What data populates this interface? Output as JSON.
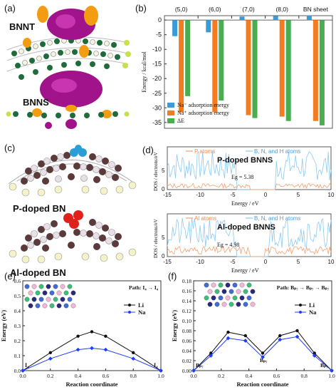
{
  "panels": {
    "a": {
      "label": "(a)",
      "top_label": "BNNT",
      "bottom_label": "BNNS"
    },
    "b": {
      "label": "(b)",
      "chart_data": {
        "type": "bar",
        "categories": [
          "(5,0)",
          "(6,0)",
          "(7,0)",
          "(8,0)",
          "BN sheet"
        ],
        "ylabel": "Energy / kcal/mol",
        "ylim": [
          -37,
          1.5
        ],
        "yticks": [
          0,
          -5,
          -10,
          -15,
          -20,
          -25,
          -30,
          -35
        ],
        "series": [
          {
            "name": "Na⁻ adsorption energy",
            "color": "#3a9bd9",
            "values": [
              -5.5,
              -4.2,
              1.2,
              1.4,
              1.6
            ]
          },
          {
            "name": "Na⁺ adsorption energy",
            "color": "#f47c20",
            "values": [
              -31.5,
              -31.5,
              -32.5,
              -33.0,
              -34.5
            ]
          },
          {
            "name": "ΔE",
            "color": "#4aad52",
            "values": [
              -26.0,
              -27.5,
              -33.5,
              -34.5,
              -36.0
            ]
          }
        ]
      }
    },
    "c": {
      "label": "(c)",
      "top_label": "P-doped BN",
      "bottom_label": "Al-doped BN"
    },
    "d": {
      "label": "(d)",
      "top": {
        "legend_a": "P atoms",
        "legend_b": "B, N, and H atoms",
        "title": "P-doped BNNS",
        "eg": "Eg = 5.38",
        "ylabel": "DOS / electrons/eV",
        "xlabel": "Energy / eV",
        "xticks": [
          "-15",
          "-10",
          "-5",
          "0",
          "5",
          "10"
        ],
        "yticks": [
          "0",
          "5"
        ]
      },
      "bottom": {
        "legend_a": "Al atoms",
        "legend_b": "B, N, and H atoms",
        "title": "Al-doped BNNS",
        "eg": "Eg = 4.98",
        "ylabel": "DOS / electrons/eV",
        "xlabel": "Energy / eV",
        "xticks": [
          "-15",
          "-10",
          "-5",
          "0",
          "5",
          "10"
        ],
        "yticks": [
          "0",
          "5"
        ]
      },
      "colors": {
        "dopant": "#f4a070",
        "host": "#8ccaf0"
      }
    },
    "e": {
      "label": "(e)",
      "path_label": "Path: I₄ → I₄",
      "start_label": "I₄",
      "end_label": "I₄",
      "chart_data": {
        "type": "line",
        "xlabel": "Reaction coordinate",
        "ylabel": "Energy (eV)",
        "xlim": [
          0,
          1
        ],
        "ylim": [
          0,
          0.6
        ],
        "xticks": [
          "0.0",
          "0.2",
          "0.4",
          "0.6",
          "0.8",
          "1.0"
        ],
        "yticks": [
          "0.0",
          "0.1",
          "0.2",
          "0.3",
          "0.4",
          "0.5",
          "0.6"
        ],
        "x": [
          0,
          0.2,
          0.4,
          0.5,
          0.6,
          0.8,
          1.0
        ],
        "series": [
          {
            "name": "Li",
            "color": "#111111",
            "values": [
              0.0,
              0.12,
              0.23,
              0.26,
              0.23,
              0.12,
              0.0
            ]
          },
          {
            "name": "Na",
            "color": "#1f3cff",
            "values": [
              0.0,
              0.08,
              0.14,
              0.15,
              0.14,
              0.08,
              0.0
            ]
          }
        ]
      }
    },
    "f": {
      "label": "(f)",
      "path_label": "Path: Bₚ₇ → Bₚ₇ → Bₚ₇",
      "start_label": "Bₚ₇",
      "mid_label": "Bₚ₇",
      "end_label": "Bₚ₇",
      "chart_data": {
        "type": "line",
        "xlabel": "Reaction coordinate",
        "ylabel": "Energy (eV)",
        "xlim": [
          0,
          1
        ],
        "ylim": [
          0,
          0.18
        ],
        "xticks": [
          "0.0",
          "0.2",
          "0.4",
          "0.6",
          "0.8",
          "1.0"
        ],
        "yticks": [
          "0.00",
          "0.02",
          "0.04",
          "0.06",
          "0.08",
          "0.10",
          "0.12",
          "0.14",
          "0.16",
          "0.18"
        ],
        "x": [
          0,
          0.125,
          0.25,
          0.375,
          0.5,
          0.625,
          0.75,
          0.875,
          1.0
        ],
        "series": [
          {
            "name": "Li",
            "color": "#111111",
            "values": [
              0.0,
              0.035,
              0.077,
              0.07,
              0.035,
              0.07,
              0.08,
              0.035,
              0.0
            ]
          },
          {
            "name": "Na",
            "color": "#1f3cff",
            "values": [
              0.0,
              0.03,
              0.065,
              0.06,
              0.027,
              0.062,
              0.068,
              0.03,
              0.0
            ]
          }
        ]
      }
    }
  }
}
